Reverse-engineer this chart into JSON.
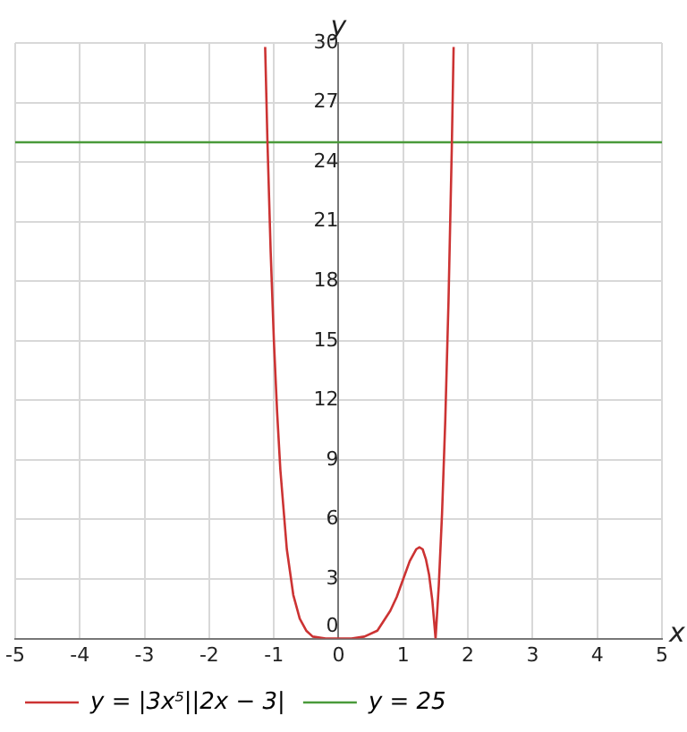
{
  "chart_data": {
    "type": "line",
    "xlabel": "x",
    "ylabel": "y",
    "xlim": [
      -5,
      5
    ],
    "xticks": [
      -5,
      -4,
      -3,
      -2,
      -1,
      0,
      1,
      2,
      3,
      4,
      5
    ],
    "ylim": [
      0,
      30
    ],
    "yticks": [
      0,
      3,
      6,
      9,
      12,
      15,
      18,
      21,
      24,
      27,
      30
    ],
    "grid": true,
    "legend": "bottom",
    "marker": "none",
    "line_style": "solid",
    "series": [
      {
        "name": "y = |3x⁵||2x − 3|",
        "color": "#cc3333",
        "x": [
          -1.135,
          -1.1,
          -1.05,
          -1,
          -0.95,
          -0.9,
          -0.8,
          -0.7,
          -0.6,
          -0.5,
          -0.4,
          -0.2,
          0,
          0.2,
          0.4,
          0.6,
          0.8,
          0.9,
          1,
          1.1,
          1.2,
          1.25,
          1.3,
          1.35,
          1.4,
          1.45,
          1.5,
          1.55,
          1.6,
          1.65,
          1.7,
          1.75,
          1.779
        ],
        "values": [
          29.8,
          25.1,
          19.5,
          15,
          11.4,
          8.5,
          4.5,
          2.2,
          1,
          0.4,
          0.1,
          0,
          0,
          0,
          0.1,
          0.4,
          1.4,
          2.1,
          3,
          3.9,
          4.5,
          4.6,
          4.5,
          4,
          3.2,
          1.9,
          0,
          2.7,
          6.3,
          11,
          17,
          24.6,
          29.8
        ]
      },
      {
        "name": "y = 25",
        "color": "#4a9a3a",
        "x": [
          -5,
          5
        ],
        "values": [
          25,
          25
        ]
      }
    ]
  }
}
